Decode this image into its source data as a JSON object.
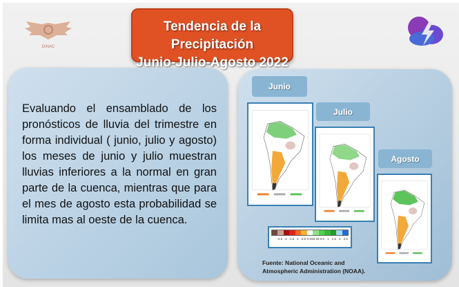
{
  "header": {
    "title_line1": "Tendencia de la Precipitación",
    "title_line2": "Junio-Julio-Agosto 2022",
    "logo_left_text": "DINAC"
  },
  "body_text": "Evaluando el ensamblado de los pronósticos de lluvia del trimestre en forma individual ( junio, julio y agosto) los meses de junio y julio muestran lluvias inferiores a la normal en gran parte de la cuenca, mientras que para el mes de agosto esta probabilidad se limita mas al oeste de la cuenca.",
  "maps": [
    {
      "label": "Junio"
    },
    {
      "label": "Julio"
    },
    {
      "label": "Agosto"
    }
  ],
  "legend": {
    "colors": [
      "#6b4a3e",
      "#c9a095",
      "#a50f0f",
      "#e3211c",
      "#f46d1b",
      "#f8b23c",
      "#ffffff",
      "#8fe08a",
      "#4fcf4f",
      "#38b838",
      "#1f9e2a",
      "#a5d8f0",
      "#1f6fd6"
    ],
    "ticks": [
      "-2.5",
      "-2",
      "-1.5",
      "-1",
      "-0.5",
      "-0.25",
      "0.25",
      "0.5",
      "1",
      "1.5",
      "2",
      "2.5"
    ]
  },
  "source": {
    "line1": "Fuente: National Oceanic and",
    "line2": "Atmospheric Administration (NOAA)."
  },
  "colors": {
    "title_bg": "#e05224",
    "panel": "#b8d1e4",
    "label_bg": "#89b5d2"
  }
}
